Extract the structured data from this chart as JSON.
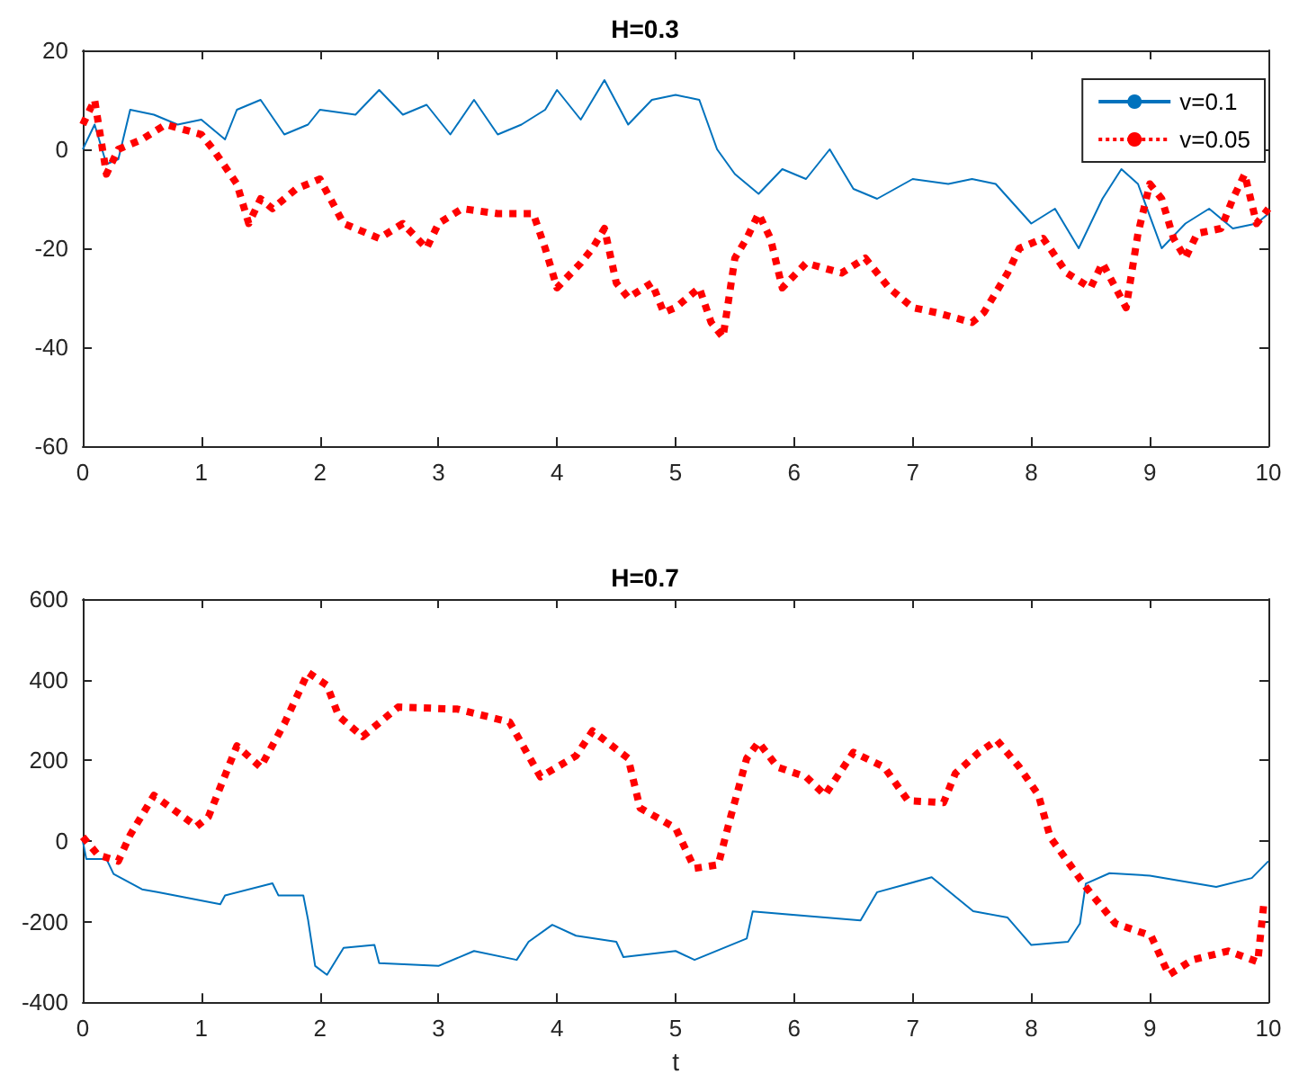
{
  "chart_data": [
    {
      "type": "line",
      "title": "H=0.3",
      "xlim": [
        0,
        10
      ],
      "xticks": [
        0,
        1,
        2,
        3,
        4,
        5,
        6,
        7,
        8,
        9,
        10
      ],
      "ylim": [
        -60,
        20
      ],
      "yticks": [
        -60,
        -40,
        -20,
        0,
        20
      ],
      "grid": false,
      "legend": "top right",
      "marker": "none",
      "series": [
        {
          "name": "v=0.1",
          "color": "#0072bd",
          "line_style": "solid",
          "x": [
            0,
            0.1,
            0.2,
            0.3,
            0.4,
            0.6,
            0.8,
            1.0,
            1.2,
            1.3,
            1.5,
            1.7,
            1.9,
            2.0,
            2.3,
            2.5,
            2.7,
            2.9,
            3.1,
            3.3,
            3.5,
            3.7,
            3.9,
            4.0,
            4.2,
            4.4,
            4.6,
            4.8,
            5.0,
            5.2,
            5.35,
            5.5,
            5.7,
            5.9,
            6.1,
            6.3,
            6.5,
            6.7,
            7.0,
            7.3,
            7.5,
            7.7,
            8.0,
            8.2,
            8.4,
            8.6,
            8.76,
            8.9,
            9.1,
            9.3,
            9.5,
            9.7,
            9.9,
            10
          ],
          "values": [
            0,
            5,
            -3,
            -2,
            8,
            7,
            5,
            6,
            2,
            8,
            10,
            3,
            5,
            8,
            7,
            12,
            7,
            9,
            3,
            10,
            3,
            5,
            8,
            12,
            6,
            14,
            5,
            10,
            11,
            10,
            0,
            -5,
            -9,
            -4,
            -6,
            0,
            -8,
            -10,
            -6,
            -7,
            -6,
            -7,
            -15,
            -12,
            -20,
            -10,
            -4,
            -7,
            -20,
            -15,
            -12,
            -16,
            -15,
            -13
          ]
        },
        {
          "name": "v=0.05",
          "color": "#ff0000",
          "line_style": "dotted",
          "x": [
            0,
            0.1,
            0.2,
            0.3,
            0.5,
            0.7,
            1.0,
            1.1,
            1.3,
            1.4,
            1.5,
            1.6,
            1.8,
            2.0,
            2.2,
            2.5,
            2.7,
            2.9,
            3.0,
            3.2,
            3.5,
            3.8,
            3.9,
            4.0,
            4.2,
            4.3,
            4.4,
            4.5,
            4.6,
            4.8,
            4.9,
            5.0,
            5.2,
            5.3,
            5.4,
            5.5,
            5.6,
            5.7,
            5.8,
            5.9,
            6.1,
            6.4,
            6.6,
            6.8,
            7.0,
            7.2,
            7.5,
            7.6,
            7.8,
            7.9,
            8.1,
            8.3,
            8.5,
            8.6,
            8.8,
            8.9,
            9.0,
            9.1,
            9.2,
            9.3,
            9.4,
            9.6,
            9.7,
            9.8,
            9.9,
            10
          ],
          "values": [
            5,
            10,
            -5,
            0,
            2,
            5,
            3,
            0,
            -7,
            -15,
            -10,
            -12,
            -8,
            -6,
            -15,
            -18,
            -15,
            -20,
            -15,
            -12,
            -13,
            -13,
            -20,
            -28,
            -23,
            -20,
            -16,
            -27,
            -30,
            -27,
            -33,
            -32,
            -28,
            -35,
            -38,
            -22,
            -18,
            -13,
            -18,
            -28,
            -23,
            -25,
            -22,
            -28,
            -32,
            -33,
            -35,
            -33,
            -25,
            -20,
            -18,
            -25,
            -28,
            -23,
            -32,
            -17,
            -7,
            -10,
            -18,
            -22,
            -17,
            -16,
            -10,
            -5,
            -15,
            -12
          ]
        }
      ]
    },
    {
      "type": "line",
      "title": "H=0.7",
      "xlabel": "t",
      "xlim": [
        0,
        10
      ],
      "xticks": [
        0,
        1,
        2,
        3,
        4,
        5,
        6,
        7,
        8,
        9,
        10
      ],
      "ylim": [
        -400,
        600
      ],
      "yticks": [
        -400,
        -200,
        0,
        200,
        400,
        600
      ],
      "grid": false,
      "legend": false,
      "marker": "none",
      "series": [
        {
          "color": "#0072bd",
          "line_style": "solid",
          "x": [
            0,
            0.03,
            0.2,
            0.26,
            0.5,
            0.63,
            1.16,
            1.2,
            1.6,
            1.65,
            1.86,
            1.9,
            1.96,
            2.06,
            2.2,
            2.46,
            2.5,
            3.0,
            3.3,
            3.66,
            3.76,
            3.96,
            4.16,
            4.5,
            4.56,
            5.0,
            5.16,
            5.6,
            5.65,
            6.56,
            6.7,
            7.16,
            7.51,
            7.8,
            8.0,
            8.31,
            8.41,
            8.46,
            8.66,
            9.0,
            9.56,
            9.86,
            10
          ],
          "values": [
            0,
            -45,
            -45,
            -82,
            -120,
            -127,
            -157,
            -135,
            -105,
            -135,
            -135,
            -195,
            -310,
            -332,
            -265,
            -258,
            -303,
            -310,
            -273,
            -295,
            -250,
            -208,
            -235,
            -250,
            -288,
            -273,
            -295,
            -242,
            -175,
            -197,
            -127,
            -90,
            -174,
            -190,
            -258,
            -250,
            -205,
            -106,
            -80,
            -86,
            -114,
            -92,
            -50
          ]
        },
        {
          "color": "#ff0000",
          "line_style": "dotted",
          "x": [
            0,
            0.13,
            0.3,
            0.4,
            0.6,
            0.96,
            1.06,
            1.3,
            1.5,
            1.7,
            1.9,
            2.06,
            2.16,
            2.36,
            2.66,
            3.16,
            3.6,
            3.86,
            4.16,
            4.3,
            4.6,
            4.7,
            5.0,
            5.16,
            5.36,
            5.46,
            5.6,
            5.7,
            5.86,
            6.1,
            6.26,
            6.5,
            6.76,
            6.96,
            7.26,
            7.36,
            7.56,
            7.71,
            7.9,
            8.06,
            8.16,
            8.31,
            8.46,
            8.71,
            9.01,
            9.16,
            9.36,
            9.66,
            9.91,
            9.96
          ],
          "values": [
            10,
            -35,
            -50,
            15,
            113,
            36,
            60,
            236,
            183,
            291,
            418,
            386,
            309,
            259,
            332,
            327,
            295,
            159,
            211,
            273,
            205,
            82,
            32,
            -68,
            -59,
            55,
            205,
            245,
            183,
            159,
            114,
            220,
            183,
            100,
            95,
            168,
            220,
            250,
            183,
            114,
            9,
            -52,
            -114,
            -205,
            -235,
            -332,
            -295,
            -273,
            -300,
            -159
          ]
        }
      ]
    }
  ]
}
